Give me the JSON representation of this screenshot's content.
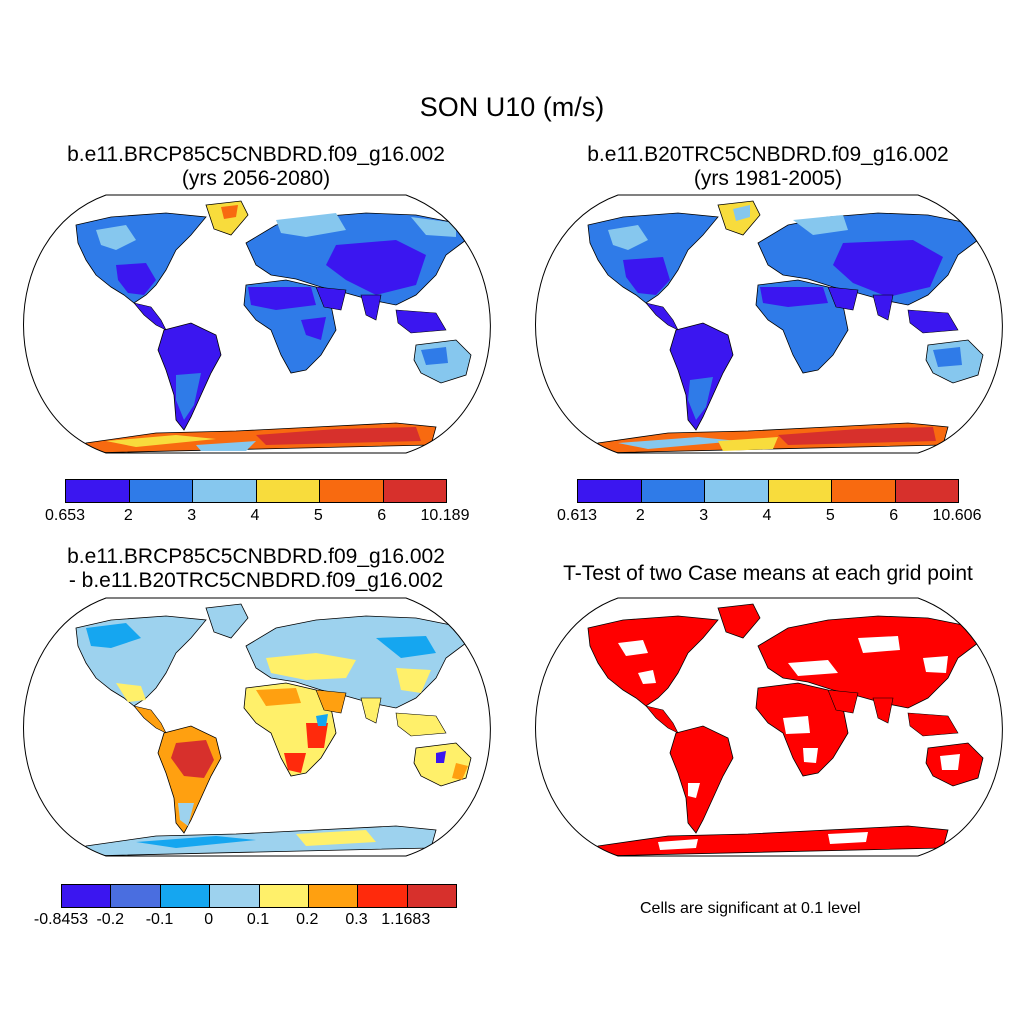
{
  "main_title": "SON U10 (m/s)",
  "panels": [
    {
      "title_line1": "b.e11.BRCP85C5CNBDRD.f09_g16.002",
      "title_line2": "(yrs 2056-2080)"
    },
    {
      "title_line1": "b.e11.B20TRC5CNBDRD.f09_g16.002",
      "title_line2": "(yrs 1981-2005)"
    },
    {
      "title_line1": "b.e11.BRCP85C5CNBDRD.f09_g16.002",
      "title_line2": "- b.e11.B20TRC5CNBDRD.f09_g16.002"
    },
    {
      "title_line1": "T-Test of two Case means at each grid point"
    }
  ],
  "colorbars": {
    "cb1": {
      "labels": [
        "0.653",
        "2",
        "3",
        "4",
        "5",
        "6",
        "10.189"
      ],
      "colors": [
        "#3b16f0",
        "#2f7be8",
        "#86c7ee",
        "#f8dc3c",
        "#f86a10",
        "#d7302c"
      ]
    },
    "cb2": {
      "labels": [
        "0.613",
        "2",
        "3",
        "4",
        "5",
        "6",
        "10.606"
      ],
      "colors": [
        "#3b16f0",
        "#2f7be8",
        "#86c7ee",
        "#f8dc3c",
        "#f86a10",
        "#d7302c"
      ]
    },
    "cb3": {
      "labels": [
        "-0.8453",
        "-0.2",
        "-0.1",
        "0",
        "0.1",
        "0.2",
        "0.3",
        "1.1683"
      ],
      "colors": [
        "#3b16f0",
        "#4a6ee0",
        "#15a6f0",
        "#9dd2ee",
        "#fff06a",
        "#ffa010",
        "#ff2a0c",
        "#d7302c"
      ]
    }
  },
  "significance_note": "Cells are significant at 0.1 level",
  "palette": {
    "ocean": "#ffffff",
    "outline": "#000000",
    "significant": "#ff0000"
  }
}
